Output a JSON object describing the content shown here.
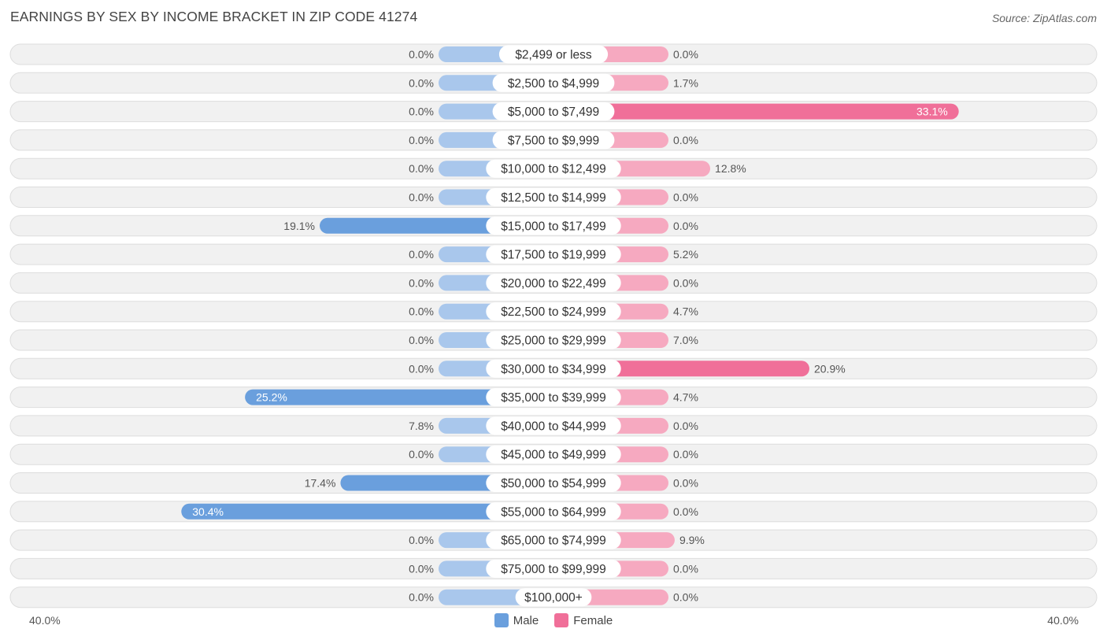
{
  "header": {
    "title": "EARNINGS BY SEX BY INCOME BRACKET IN ZIP CODE 41274",
    "source": "Source: ZipAtlas.com"
  },
  "axis": {
    "left_label": "40.0%",
    "right_label": "40.0%"
  },
  "legend": {
    "male_label": "Male",
    "female_label": "Female"
  },
  "colors": {
    "male_light": "#a9c7ec",
    "male_strong": "#6a9fdd",
    "female_light": "#f6a9c0",
    "female_strong": "#f06f99",
    "row_bg": "#f1f1f1",
    "row_border": "#dddddd"
  },
  "chart_data": {
    "type": "bar",
    "orientation": "horizontal-diverging",
    "title": "EARNINGS BY SEX BY INCOME BRACKET IN ZIP CODE 41274",
    "xlim": [
      -40,
      40
    ],
    "categories": [
      "$2,499 or less",
      "$2,500 to $4,999",
      "$5,000 to $7,499",
      "$7,500 to $9,999",
      "$10,000 to $12,499",
      "$12,500 to $14,999",
      "$15,000 to $17,499",
      "$17,500 to $19,999",
      "$20,000 to $22,499",
      "$22,500 to $24,999",
      "$25,000 to $29,999",
      "$30,000 to $34,999",
      "$35,000 to $39,999",
      "$40,000 to $44,999",
      "$45,000 to $49,999",
      "$50,000 to $54,999",
      "$55,000 to $64,999",
      "$65,000 to $74,999",
      "$75,000 to $99,999",
      "$100,000+"
    ],
    "series": [
      {
        "name": "Male",
        "values": [
          0.0,
          0.0,
          0.0,
          0.0,
          0.0,
          0.0,
          19.1,
          0.0,
          0.0,
          0.0,
          0.0,
          0.0,
          25.2,
          7.8,
          0.0,
          17.4,
          30.4,
          0.0,
          0.0,
          0.0
        ],
        "labels": [
          "0.0%",
          "0.0%",
          "0.0%",
          "0.0%",
          "0.0%",
          "0.0%",
          "19.1%",
          "0.0%",
          "0.0%",
          "0.0%",
          "0.0%",
          "0.0%",
          "25.2%",
          "7.8%",
          "0.0%",
          "17.4%",
          "30.4%",
          "0.0%",
          "0.0%",
          "0.0%"
        ]
      },
      {
        "name": "Female",
        "values": [
          0.0,
          1.7,
          33.1,
          0.0,
          12.8,
          0.0,
          0.0,
          5.2,
          0.0,
          4.7,
          7.0,
          20.9,
          4.7,
          0.0,
          0.0,
          0.0,
          0.0,
          9.9,
          0.0,
          0.0
        ],
        "labels": [
          "0.0%",
          "1.7%",
          "33.1%",
          "0.0%",
          "12.8%",
          "0.0%",
          "0.0%",
          "5.2%",
          "0.0%",
          "4.7%",
          "7.0%",
          "20.9%",
          "4.7%",
          "0.0%",
          "0.0%",
          "0.0%",
          "0.0%",
          "9.9%",
          "0.0%",
          "0.0%"
        ]
      }
    ]
  }
}
